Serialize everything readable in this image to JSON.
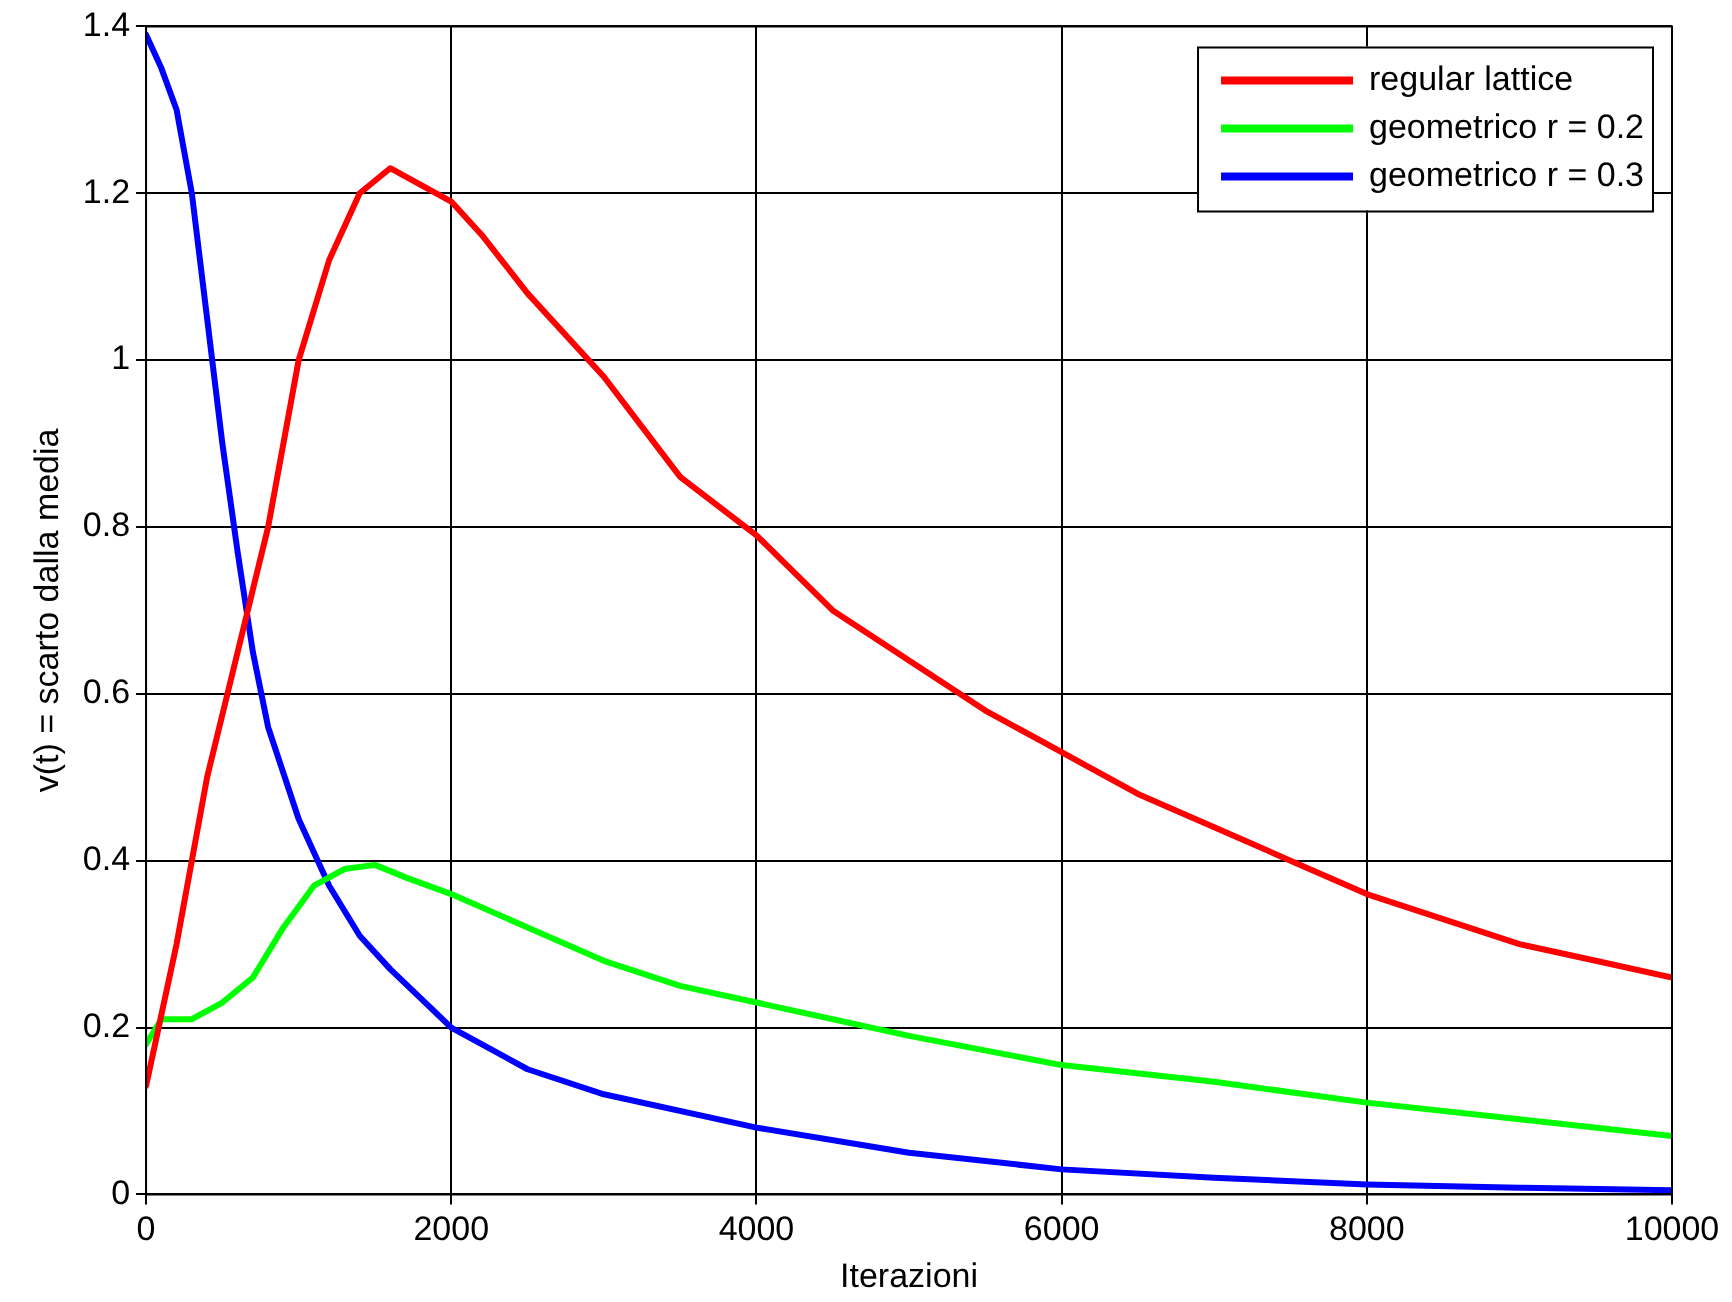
{
  "chart_data": {
    "type": "line",
    "xlabel": "Iterazioni",
    "ylabel": "v(t) = scarto dalla media",
    "xlim": [
      0,
      10000
    ],
    "xticks": [
      0,
      2000,
      4000,
      6000,
      8000,
      10000
    ],
    "ylim": [
      0,
      1.4
    ],
    "yticks": [
      0,
      0.2,
      0.4,
      0.6,
      0.8,
      1,
      1.2,
      1.4
    ],
    "grid": true,
    "legend": "top right",
    "marker": "none",
    "line_style": "solid",
    "series": [
      {
        "name": "regular lattice",
        "color": "#ff0000",
        "x": [
          0,
          200,
          400,
          600,
          800,
          1000,
          1200,
          1400,
          1600,
          1800,
          2000,
          2200,
          2500,
          3000,
          3500,
          4000,
          4500,
          5000,
          5500,
          6000,
          6500,
          7000,
          7500,
          8000,
          8500,
          9000,
          9500,
          10000
        ],
        "values": [
          0.13,
          0.3,
          0.5,
          0.65,
          0.8,
          1.0,
          1.12,
          1.2,
          1.23,
          1.21,
          1.19,
          1.15,
          1.08,
          0.98,
          0.86,
          0.79,
          0.7,
          0.64,
          0.58,
          0.53,
          0.48,
          0.44,
          0.4,
          0.36,
          0.33,
          0.3,
          0.28,
          0.26
        ]
      },
      {
        "name": "geometrico r = 0.2",
        "color": "#00ff00",
        "x": [
          0,
          100,
          300,
          500,
          700,
          900,
          1100,
          1300,
          1500,
          1700,
          2000,
          2500,
          3000,
          3500,
          4000,
          5000,
          6000,
          7000,
          8000,
          9000,
          10000
        ],
        "values": [
          0.18,
          0.21,
          0.21,
          0.23,
          0.26,
          0.32,
          0.37,
          0.39,
          0.395,
          0.38,
          0.36,
          0.32,
          0.28,
          0.25,
          0.23,
          0.19,
          0.155,
          0.135,
          0.11,
          0.09,
          0.07
        ]
      },
      {
        "name": "geometrico r = 0.3",
        "color": "#0000ff",
        "x": [
          0,
          100,
          200,
          300,
          400,
          500,
          600,
          700,
          800,
          1000,
          1200,
          1400,
          1600,
          2000,
          2500,
          3000,
          4000,
          5000,
          6000,
          7000,
          8000,
          9000,
          10000
        ],
        "values": [
          1.39,
          1.35,
          1.3,
          1.2,
          1.05,
          0.9,
          0.77,
          0.65,
          0.56,
          0.45,
          0.37,
          0.31,
          0.27,
          0.2,
          0.15,
          0.12,
          0.08,
          0.05,
          0.03,
          0.02,
          0.012,
          0.008,
          0.005
        ]
      }
    ]
  }
}
